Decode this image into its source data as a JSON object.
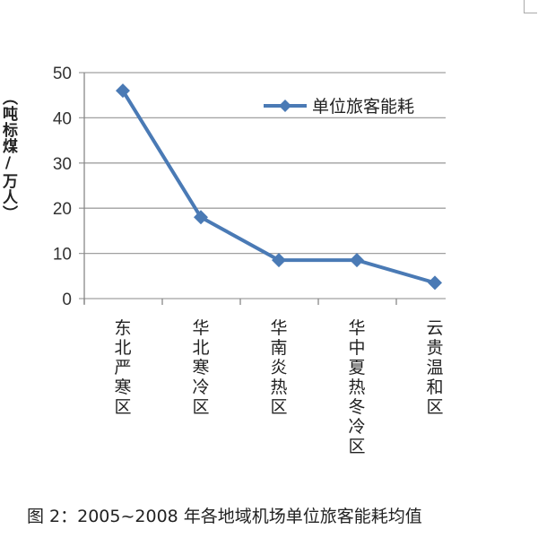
{
  "chart_data": {
    "type": "line",
    "title": "",
    "ylabel": "（吨标煤/万人）",
    "xlabel": "",
    "categories": [
      "东北严寒区",
      "华北寒冷区",
      "华南炎热区",
      "华中夏热冬冷区",
      "云贵温和区"
    ],
    "series": [
      {
        "name": "单位旅客能耗",
        "values": [
          46,
          18,
          8.5,
          8.5,
          3.5
        ],
        "color": "#4a7ab5"
      }
    ],
    "ylim": [
      0,
      50
    ],
    "yticks": [
      0,
      10,
      20,
      30,
      40,
      50
    ],
    "grid": true,
    "legend": "top-right"
  },
  "caption": "图 2：2005~2008 年各地域机场单位旅客能耗均值"
}
